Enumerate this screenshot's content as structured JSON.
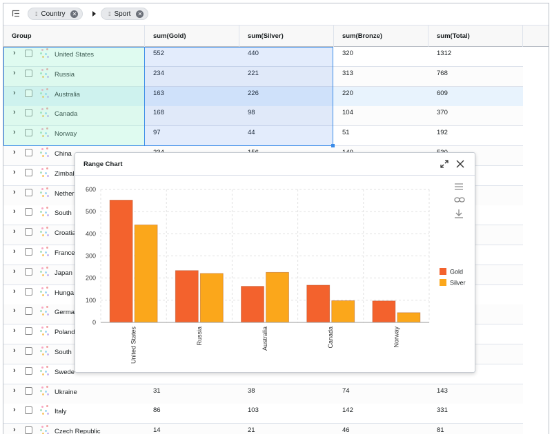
{
  "toolbar": {
    "pills": [
      {
        "label": "Country"
      },
      {
        "label": "Sport"
      }
    ]
  },
  "columns": {
    "group": "Group",
    "gold": "sum(Gold)",
    "silver": "sum(Silver)",
    "bronze": "sum(Bronze)",
    "total": "sum(Total)"
  },
  "rows": [
    {
      "country": "United States",
      "gold": "552",
      "silver": "440",
      "bronze": "320",
      "total": "1312"
    },
    {
      "country": "Russia",
      "gold": "234",
      "silver": "221",
      "bronze": "313",
      "total": "768"
    },
    {
      "country": "Australia",
      "gold": "163",
      "silver": "226",
      "bronze": "220",
      "total": "609"
    },
    {
      "country": "Canada",
      "gold": "168",
      "silver": "98",
      "bronze": "104",
      "total": "370"
    },
    {
      "country": "Norway",
      "gold": "97",
      "silver": "44",
      "bronze": "51",
      "total": "192"
    },
    {
      "country": "China",
      "gold": "234",
      "silver": "156",
      "bronze": "140",
      "total": "530"
    },
    {
      "country": "Zimbal",
      "gold": "",
      "silver": "",
      "bronze": "",
      "total": ""
    },
    {
      "country": "Nether",
      "gold": "",
      "silver": "",
      "bronze": "",
      "total": ""
    },
    {
      "country": "South",
      "gold": "",
      "silver": "",
      "bronze": "",
      "total": ""
    },
    {
      "country": "Croatia",
      "gold": "",
      "silver": "",
      "bronze": "",
      "total": ""
    },
    {
      "country": "France",
      "gold": "",
      "silver": "",
      "bronze": "",
      "total": ""
    },
    {
      "country": "Japan",
      "gold": "",
      "silver": "",
      "bronze": "",
      "total": ""
    },
    {
      "country": "Hunga",
      "gold": "",
      "silver": "",
      "bronze": "",
      "total": ""
    },
    {
      "country": "Germa",
      "gold": "",
      "silver": "",
      "bronze": "",
      "total": ""
    },
    {
      "country": "Poland",
      "gold": "",
      "silver": "",
      "bronze": "",
      "total": ""
    },
    {
      "country": "South",
      "gold": "",
      "silver": "",
      "bronze": "",
      "total": ""
    },
    {
      "country": "Swede",
      "gold": "",
      "silver": "",
      "bronze": "",
      "total": ""
    },
    {
      "country": "Ukraine",
      "gold": "31",
      "silver": "38",
      "bronze": "74",
      "total": "143"
    },
    {
      "country": "Italy",
      "gold": "86",
      "silver": "103",
      "bronze": "142",
      "total": "331"
    },
    {
      "country": "Czech Republic",
      "gold": "14",
      "silver": "21",
      "bronze": "46",
      "total": "81"
    }
  ],
  "chart_panel": {
    "title": "Range Chart"
  },
  "chart_data": {
    "type": "bar",
    "categories": [
      "United States",
      "Russia",
      "Australia",
      "Canada",
      "Norway"
    ],
    "series": [
      {
        "name": "Gold",
        "values": [
          552,
          234,
          163,
          168,
          97
        ],
        "color": "#f3622d"
      },
      {
        "name": "Silver",
        "values": [
          440,
          221,
          226,
          98,
          44
        ],
        "color": "#fba71b"
      }
    ],
    "yticks": [
      0,
      100,
      200,
      300,
      400,
      500,
      600
    ],
    "ylim": [
      0,
      600
    ],
    "grid": true,
    "legend": "right"
  }
}
